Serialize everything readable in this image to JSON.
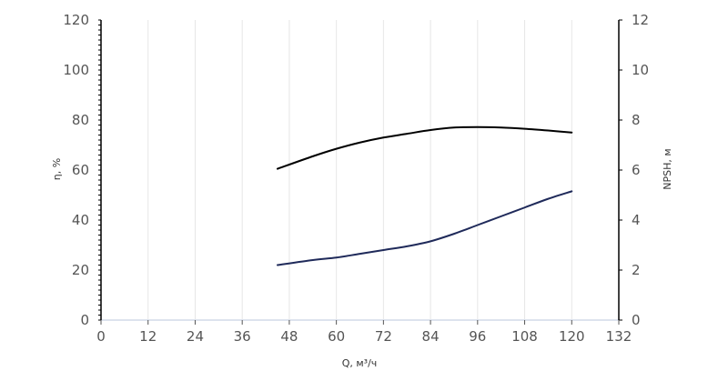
{
  "chart_data": {
    "type": "line",
    "title": "",
    "xlabel": "Q, м³/ч",
    "ylabel": "η, %",
    "y2label": "NPSH, м",
    "xlim": [
      0,
      132
    ],
    "ylim": [
      0,
      120
    ],
    "y2lim": [
      0,
      12
    ],
    "xticks": [
      0,
      12,
      24,
      36,
      48,
      60,
      72,
      84,
      96,
      108,
      120,
      132
    ],
    "yticks": [
      0,
      20,
      40,
      60,
      80,
      100,
      120
    ],
    "y2ticks": [
      0,
      2,
      4,
      6,
      8,
      10,
      12
    ],
    "grid": "vertical",
    "series": [
      {
        "axis": "left",
        "color": "#000000",
        "x": [
          45,
          54,
          60,
          66,
          72,
          78,
          84,
          90,
          96,
          102,
          108,
          114,
          120
        ],
        "y": [
          60.5,
          65.5,
          68.5,
          71.0,
          73.0,
          74.5,
          76.0,
          77.0,
          77.2,
          77.0,
          76.5,
          75.8,
          75.0
        ]
      },
      {
        "axis": "right",
        "color": "#1f2a5a",
        "x": [
          45,
          54,
          60,
          66,
          72,
          78,
          84,
          90,
          96,
          102,
          108,
          114,
          120
        ],
        "y": [
          2.2,
          2.4,
          2.5,
          2.65,
          2.8,
          2.95,
          3.15,
          3.45,
          3.8,
          4.15,
          4.5,
          4.85,
          5.15
        ]
      }
    ]
  },
  "colors": {
    "grid": "#e6e6e6",
    "axis": "#000000",
    "baseline": "#dde3ee"
  }
}
